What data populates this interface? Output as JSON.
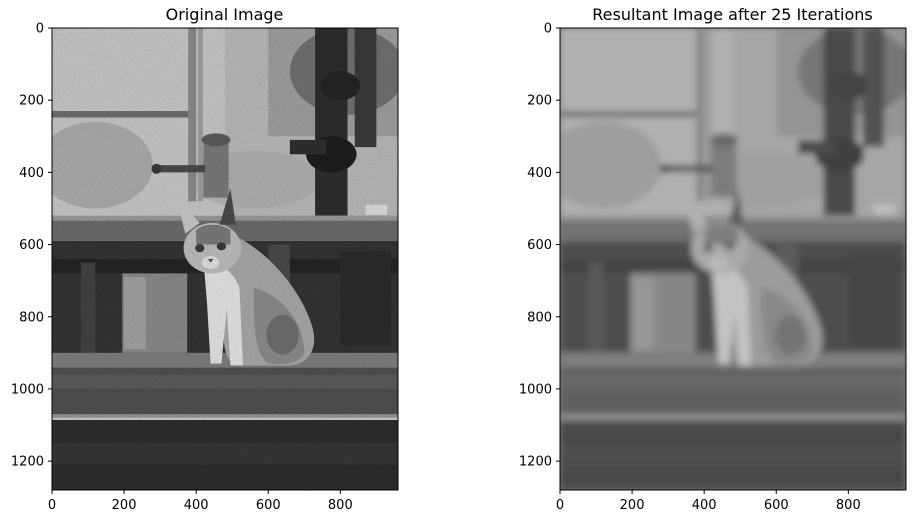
{
  "chart_data": [
    {
      "type": "image",
      "title": "Original Image",
      "image_size": [
        960,
        1280
      ],
      "xlim": [
        0,
        960
      ],
      "ylim": [
        1280,
        0
      ],
      "xticks": [
        0,
        200,
        400,
        600,
        800
      ],
      "yticks": [
        0,
        200,
        400,
        600,
        800,
        1000,
        1200
      ],
      "colormap": "gray",
      "content": "grayscale photo of a cat sitting on a concrete ledge in front of a weathered wall with pipes and a valve"
    },
    {
      "type": "image",
      "title": "Resultant Image after 25 Iterations",
      "image_size": [
        960,
        1280
      ],
      "xlim": [
        0,
        960
      ],
      "ylim": [
        1280,
        0
      ],
      "xticks": [
        0,
        200,
        400,
        600,
        800
      ],
      "yticks": [
        0,
        200,
        400,
        600,
        800,
        1000,
        1200
      ],
      "colormap": "gray",
      "content": "same photo after 25 iterations of smoothing, blurred and lower contrast"
    }
  ]
}
